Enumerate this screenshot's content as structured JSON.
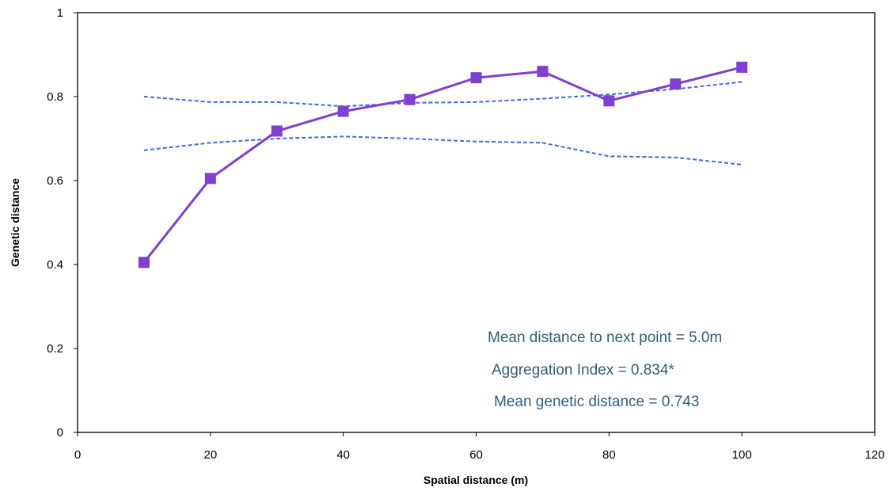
{
  "chart_data": {
    "type": "line",
    "title": "",
    "xlabel": "Spatial distance (m)",
    "ylabel": "Genetic distance",
    "xlim": [
      0,
      120
    ],
    "ylim": [
      0,
      1
    ],
    "x_ticks": [
      0,
      20,
      40,
      60,
      80,
      100,
      120
    ],
    "x_tick_labels": [
      "0",
      "20",
      "40",
      "60",
      "80",
      "100",
      "120"
    ],
    "y_ticks": [
      0,
      0.2,
      0.4,
      0.6,
      0.8,
      1
    ],
    "y_tick_labels": [
      "0",
      "0.2",
      "0.4",
      "0.6",
      "0.8",
      "1"
    ],
    "grid": false,
    "legend": "none",
    "series": [
      {
        "style": "solid-square-markers",
        "color": "#7f3fd1",
        "x": [
          10,
          20,
          30,
          40,
          50,
          60,
          70,
          80,
          90,
          100
        ],
        "values": [
          0.405,
          0.605,
          0.718,
          0.765,
          0.793,
          0.845,
          0.86,
          0.79,
          0.83,
          0.87
        ]
      },
      {
        "style": "dashed",
        "color": "#3a6fe0",
        "x": [
          10,
          20,
          30,
          40,
          50,
          60,
          70,
          80,
          90,
          100
        ],
        "values": [
          0.8,
          0.787,
          0.787,
          0.777,
          0.785,
          0.787,
          0.795,
          0.805,
          0.818,
          0.835
        ]
      },
      {
        "style": "dashed",
        "color": "#3a6fe0",
        "x": [
          10,
          20,
          30,
          40,
          50,
          60,
          70,
          80,
          90,
          100
        ],
        "values": [
          0.672,
          0.69,
          0.7,
          0.705,
          0.7,
          0.693,
          0.69,
          0.658,
          0.655,
          0.638
        ]
      }
    ],
    "annotations": [
      "Mean distance to next point = 5.0m",
      "Aggregation Index = 0.834*",
      "Mean genetic distance = 0.743"
    ],
    "annotation_color": "#2f5f7f"
  }
}
